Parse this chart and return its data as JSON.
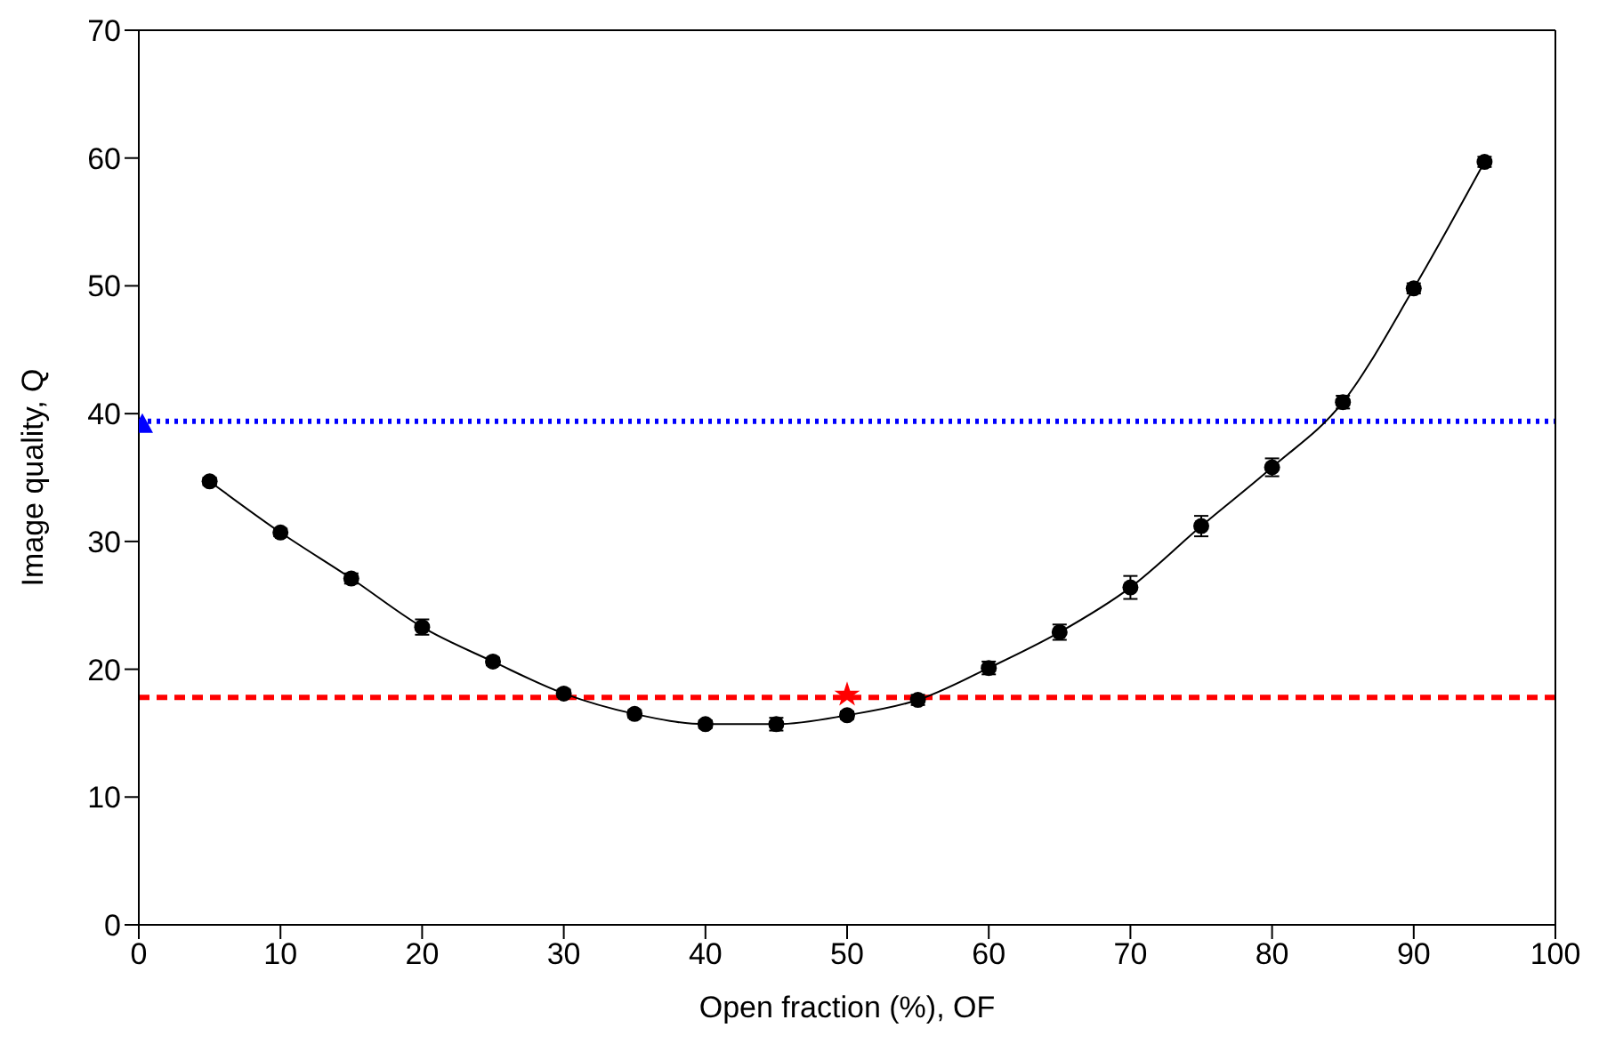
{
  "chart_data": {
    "type": "line",
    "xlabel": "Open fraction (%), OF",
    "ylabel": "Image quality, Q",
    "xlim": [
      0,
      100
    ],
    "xticks": [
      0,
      10,
      20,
      30,
      40,
      50,
      60,
      70,
      80,
      90,
      100
    ],
    "ylim": [
      0,
      70
    ],
    "yticks": [
      0,
      10,
      20,
      30,
      40,
      50,
      60,
      70
    ],
    "grid": false,
    "legend": false,
    "series": [
      {
        "color": "#000000",
        "marker": "circle",
        "line_style": "solid",
        "x": [
          5,
          10,
          15,
          20,
          25,
          30,
          35,
          40,
          45,
          50,
          55,
          60,
          65,
          70,
          75,
          80,
          85,
          90,
          95
        ],
        "values": [
          34.7,
          30.7,
          27.1,
          23.3,
          20.6,
          18.1,
          16.5,
          15.7,
          15.7,
          16.4,
          17.6,
          20.1,
          22.9,
          26.4,
          31.2,
          35.8,
          40.9,
          49.8,
          59.7
        ],
        "errors": [
          0.3,
          0.3,
          0.4,
          0.6,
          0.3,
          0.3,
          0.3,
          0.3,
          0.5,
          0.3,
          0.4,
          0.5,
          0.6,
          0.9,
          0.8,
          0.7,
          0.5,
          0.4,
          0.4
        ]
      },
      {
        "type": "scatter",
        "color": "#0000ff",
        "marker": "triangle",
        "x": [
          0.25
        ],
        "values": [
          39.2
        ]
      },
      {
        "type": "scatter",
        "color": "#ff0000",
        "marker": "star",
        "x": [
          50
        ],
        "values": [
          18.0
        ]
      }
    ],
    "ref_lines": [
      {
        "axis": "y",
        "value": 39.4,
        "color": "#0000ff",
        "line_style": "dotted"
      },
      {
        "axis": "y",
        "value": 17.8,
        "color": "#ff0000",
        "line_style": "dashed"
      }
    ]
  }
}
